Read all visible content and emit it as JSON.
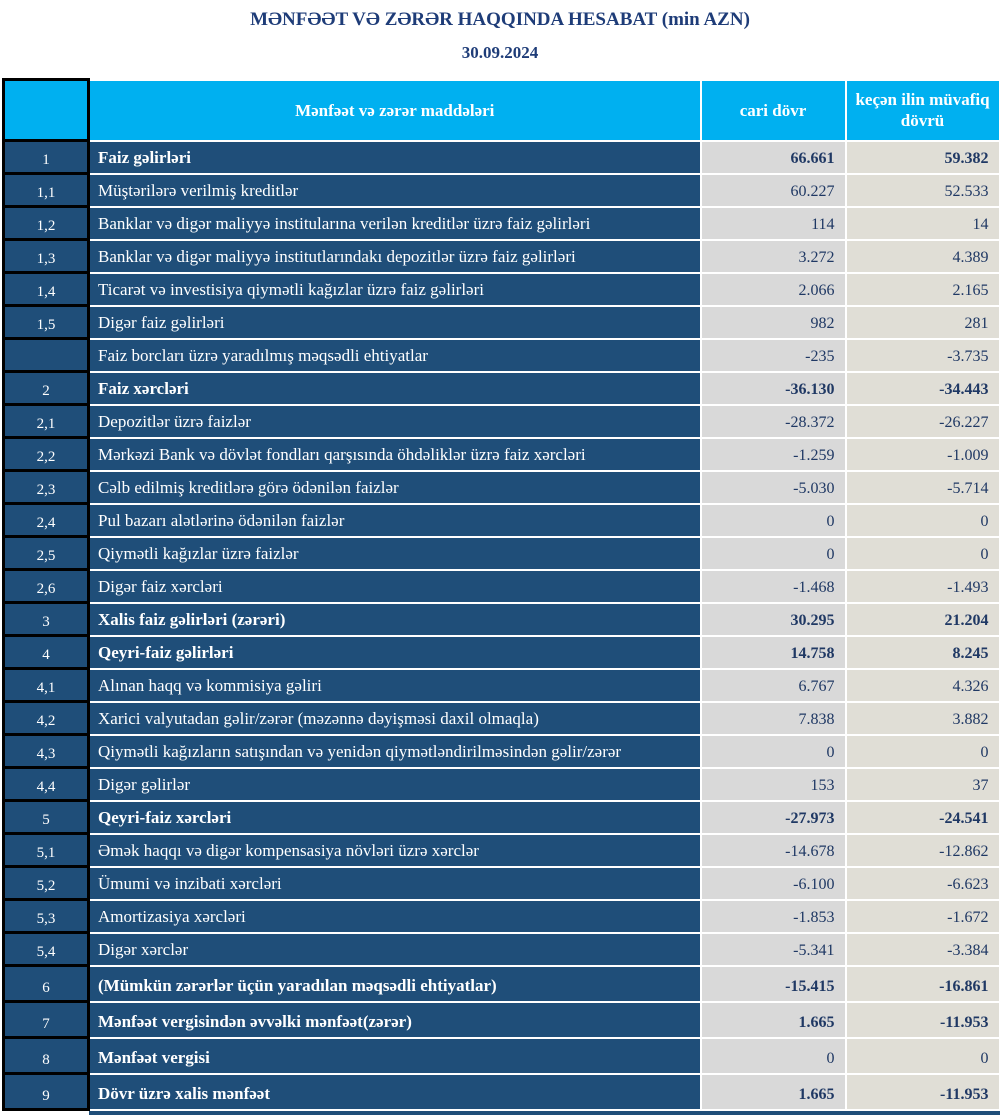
{
  "page_title": "MƏNFƏƏT VƏ ZƏRƏR HAQQINDA HESABAT (min AZN)",
  "report_date": "30.09.2024",
  "colors": {
    "header_bg": "#00b0f0",
    "row_bg": "#1f4e79",
    "current_col_bg": "#d9d9d9",
    "previous_col_bg": "#e0ded6",
    "value_text": "#1f3864",
    "title_text": "#1e3c78",
    "number_col_border": "#000000"
  },
  "table": {
    "columns": {
      "items_header": "Mənfəət və zərər maddələri",
      "current_header": "cari dövr",
      "previous_header": "keçən ilin müvafiq dövrü"
    },
    "rows": [
      {
        "num": "1",
        "label": "Faiz  gəlirləri",
        "current": "66.661",
        "previous": "59.382",
        "bold": true,
        "values_bold": true
      },
      {
        "num": "1,1",
        "label": "Müştərilərə verilmiş kreditlər",
        "current": "60.227",
        "previous": "52.533",
        "bold": false,
        "values_bold": false
      },
      {
        "num": "1,2",
        "label": "Banklar və digər maliyyə institularına verilən kreditlər üzrə faiz gəlirləri",
        "current": "114",
        "previous": "14",
        "bold": false,
        "values_bold": false
      },
      {
        "num": "1,3",
        "label": "Banklar və digər maliyyə institutlarındakı depozitlər üzrə faiz gəlirləri",
        "current": "3.272",
        "previous": "4.389",
        "bold": false,
        "values_bold": false
      },
      {
        "num": "1,4",
        "label": "Ticarət və investisiya qiymətli kağızlar üzrə faiz gəlirləri",
        "current": "2.066",
        "previous": "2.165",
        "bold": false,
        "values_bold": false
      },
      {
        "num": "1,5",
        "label": "Digər faiz gəlirləri",
        "current": "982",
        "previous": "281",
        "bold": false,
        "values_bold": false
      },
      {
        "num": "",
        "label": "Faiz borcları üzrə yaradılmış məqsədli ehtiyatlar",
        "current": "-235",
        "previous": "-3.735",
        "bold": false,
        "values_bold": false
      },
      {
        "num": "2",
        "label": "Faiz xərcləri",
        "current": "-36.130",
        "previous": "-34.443",
        "bold": true,
        "values_bold": true
      },
      {
        "num": "2,1",
        "label": "Depozitlər üzrə faizlər",
        "current": "-28.372",
        "previous": "-26.227",
        "bold": false,
        "values_bold": false
      },
      {
        "num": "2,2",
        "label": "Mərkəzi Bank və dövlət fondları qarşısında öhdəliklər üzrə faiz xərcləri",
        "current": "-1.259",
        "previous": "-1.009",
        "bold": false,
        "values_bold": false
      },
      {
        "num": "2,3",
        "label": "Cəlb edilmiş kreditlərə görə ödənilən faizlər",
        "current": "-5.030",
        "previous": "-5.714",
        "bold": false,
        "values_bold": false
      },
      {
        "num": "2,4",
        "label": "Pul bazarı alətlərinə ödənilən faizlər",
        "current": "0",
        "previous": "0",
        "bold": false,
        "values_bold": false
      },
      {
        "num": "2,5",
        "label": "Qiymətli kağızlar üzrə faizlər",
        "current": "0",
        "previous": "0",
        "bold": false,
        "values_bold": false
      },
      {
        "num": "2,6",
        "label": "Digər faiz xərcləri",
        "current": "-1.468",
        "previous": "-1.493",
        "bold": false,
        "values_bold": false
      },
      {
        "num": "3",
        "label": "Xalis faiz gəlirləri (zərəri)",
        "current": "30.295",
        "previous": "21.204",
        "bold": true,
        "values_bold": true
      },
      {
        "num": "4",
        "label": "Qeyri-faiz gəlirləri",
        "current": "14.758",
        "previous": "8.245",
        "bold": true,
        "values_bold": true
      },
      {
        "num": "4,1",
        "label": "Alınan haqq və kommisiya gəliri",
        "current": "6.767",
        "previous": "4.326",
        "bold": false,
        "values_bold": false
      },
      {
        "num": "4,2",
        "label": "Xarici valyutadan gəlir/zərər (məzənnə dəyişməsi daxil olmaqla)",
        "current": "7.838",
        "previous": "3.882",
        "bold": false,
        "values_bold": false
      },
      {
        "num": "4,3",
        "label": "Qiymətli kağızların satışından və yenidən qiymətləndirilməsindən gəlir/zərər",
        "current": "0",
        "previous": "0",
        "bold": false,
        "values_bold": false
      },
      {
        "num": "4,4",
        "label": "Digər gəlirlər",
        "current": "153",
        "previous": "37",
        "bold": false,
        "values_bold": false
      },
      {
        "num": "5",
        "label": "Qeyri-faiz xərcləri",
        "current": "-27.973",
        "previous": "-24.541",
        "bold": true,
        "values_bold": true
      },
      {
        "num": "5,1",
        "label": "Əmək haqqı və digər kompensasiya növləri üzrə xərclər",
        "current": "-14.678",
        "previous": "-12.862",
        "bold": false,
        "values_bold": false
      },
      {
        "num": "5,2",
        "label": "Ümumi və inzibati xərcləri",
        "current": "-6.100",
        "previous": "-6.623",
        "bold": false,
        "values_bold": false
      },
      {
        "num": "5,3",
        "label": "Amortizasiya xərcləri",
        "current": "-1.853",
        "previous": "-1.672",
        "bold": false,
        "values_bold": false
      },
      {
        "num": "5,4",
        "label": "Digər xərclər",
        "current": "-5.341",
        "previous": "-3.384",
        "bold": false,
        "values_bold": false
      },
      {
        "num": "6",
        "label": "(Mümkün zərərlər üçün yaradılan məqsədli ehtiyatlar)",
        "current": "-15.415",
        "previous": "-16.861",
        "bold": true,
        "values_bold": true,
        "tall": true
      },
      {
        "num": "7",
        "label": "Mənfəət vergisindən əvvəlki mənfəət(zərər)",
        "current": "1.665",
        "previous": "-11.953",
        "bold": true,
        "values_bold": true,
        "tall": true
      },
      {
        "num": "8",
        "label": "Mənfəət vergisi",
        "current": "0",
        "previous": "0",
        "bold": true,
        "values_bold": false,
        "tall": true
      },
      {
        "num": "9",
        "label": "Dövr üzrə xalis mənfəət",
        "current": "1.665",
        "previous": "-11.953",
        "bold": true,
        "values_bold": true,
        "tall": true
      }
    ]
  }
}
